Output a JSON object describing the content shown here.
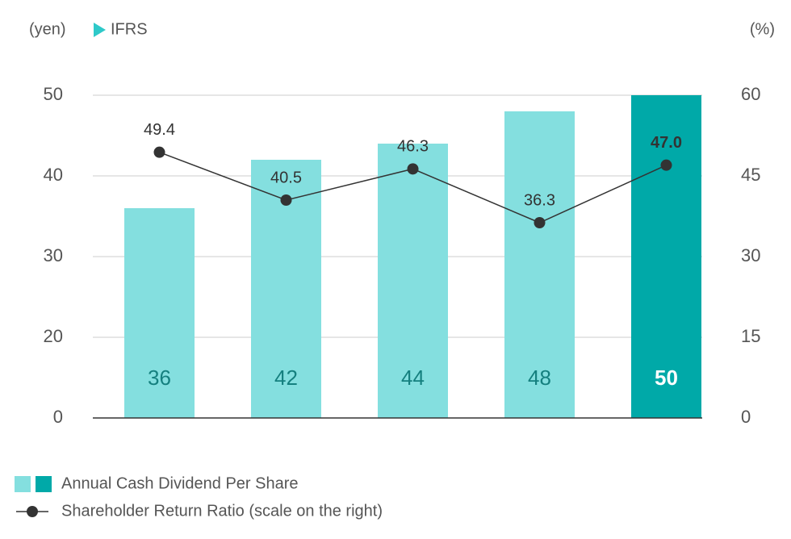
{
  "chart_data": {
    "type": "bar_line",
    "y_label": "(yen)",
    "annotation": "IFRS",
    "y2_label": "(%)",
    "categories": [
      null,
      null,
      null,
      null,
      null
    ],
    "series": [
      {
        "name": "Annual Cash Dividend Per Share",
        "type": "bar",
        "colors": [
          "#84dfdf",
          "#84dfdf",
          "#84dfdf",
          "#84dfdf",
          "#00a9a8"
        ],
        "label_colors": [
          "#15807f",
          "#15807f",
          "#15807f",
          "#15807f",
          "#ffffff"
        ],
        "values": [
          36,
          42,
          44,
          48,
          50
        ]
      },
      {
        "name": "Shareholder Return Ratio (scale on the right)",
        "type": "line",
        "axis": "y2",
        "color": "#333333",
        "values": [
          49.4,
          40.5,
          46.3,
          36.3,
          47.0
        ],
        "value_labels": [
          "49.4",
          "40.5",
          "46.3",
          "36.3",
          "47.0"
        ]
      }
    ],
    "ylim": [
      0,
      50
    ],
    "yticks": [
      0,
      20,
      30,
      40,
      50
    ],
    "y2lim": [
      0,
      60
    ],
    "y2ticks": [
      0,
      15,
      30,
      45,
      60
    ],
    "grid": true
  }
}
